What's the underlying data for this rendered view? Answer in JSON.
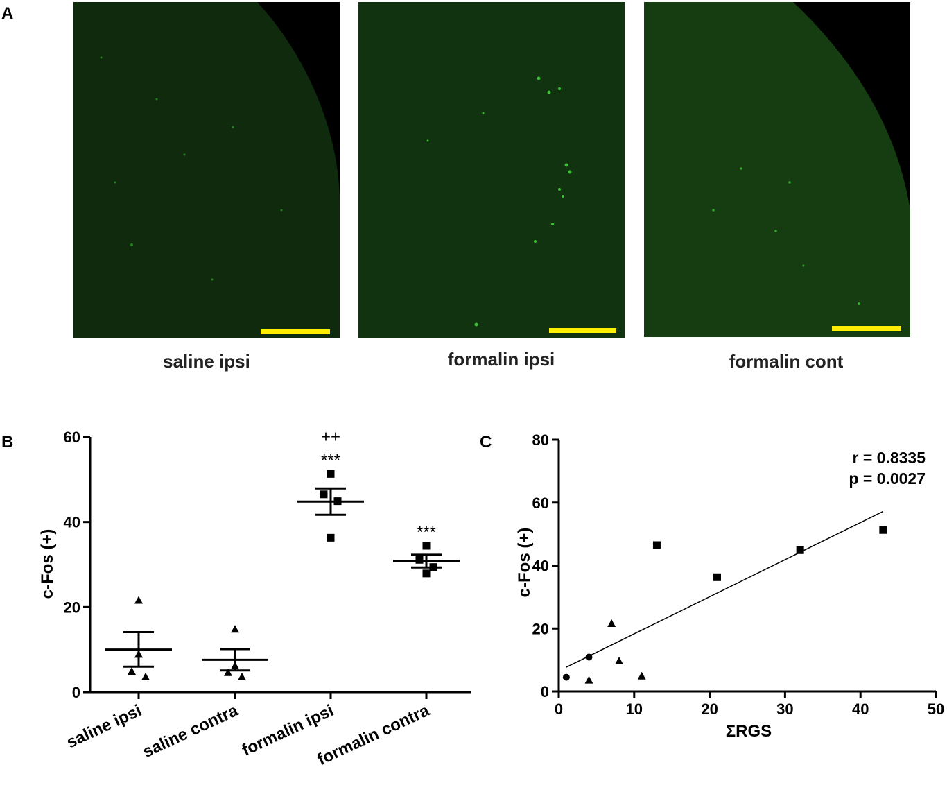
{
  "panels": {
    "a": "A",
    "b": "B",
    "c": "C"
  },
  "micrographs": [
    {
      "label": "saline ipsi",
      "tissue_color": "#0f2a0c",
      "background_color": "#000000",
      "scale_bar_color": "#ffee00"
    },
    {
      "label": "formalin ipsi",
      "tissue_color": "#113310",
      "background_color": "#000000",
      "scale_bar_color": "#ffee00"
    },
    {
      "label": "formalin cont",
      "tissue_color": "#163d12",
      "background_color": "#000000",
      "scale_bar_color": "#ffee00"
    }
  ],
  "chart_data": [
    {
      "type": "scatter",
      "panel": "B",
      "ylabel": "c-Fos (+)",
      "ylim": [
        0,
        60
      ],
      "yticks": [
        0,
        20,
        40,
        60
      ],
      "categories": [
        "saline ipsi",
        "saline contra",
        "formalin ipsi",
        "formalin contra"
      ],
      "groups": [
        {
          "category": "saline ipsi",
          "marker": "triangle",
          "points": [
            21.6,
            8.9,
            4.9,
            3.6
          ],
          "mean": 10.0,
          "sem_upper": 14.1,
          "sem_lower": 6.0
        },
        {
          "category": "saline contra",
          "marker": "triangle",
          "points": [
            14.8,
            6.2,
            4.6,
            3.6
          ],
          "mean": 7.6,
          "sem_upper": 10.1,
          "sem_lower": 5.1
        },
        {
          "category": "formalin ipsi",
          "marker": "square",
          "points": [
            51.3,
            46.5,
            44.9,
            36.3
          ],
          "mean": 44.8,
          "sem_upper": 47.9,
          "sem_lower": 41.7
        },
        {
          "category": "formalin contra",
          "marker": "square",
          "points": [
            34.4,
            31.1,
            29.4,
            27.9
          ],
          "mean": 30.8,
          "sem_upper": 32.3,
          "sem_lower": 29.3
        }
      ],
      "annotations": [
        {
          "category": "formalin ipsi",
          "lines": [
            "++",
            "***"
          ]
        },
        {
          "category": "formalin contra",
          "lines": [
            "***"
          ]
        }
      ]
    },
    {
      "type": "scatter",
      "panel": "C",
      "xlabel": "ΣRGS",
      "ylabel": "c-Fos (+)",
      "xlim": [
        0,
        50
      ],
      "ylim": [
        0,
        80
      ],
      "xticks": [
        0,
        10,
        20,
        30,
        40,
        50
      ],
      "yticks": [
        0,
        20,
        40,
        60,
        80
      ],
      "series": [
        {
          "marker": "circle",
          "points": [
            [
              1,
              4.5
            ],
            [
              4,
              10.9
            ]
          ]
        },
        {
          "marker": "triangle",
          "points": [
            [
              4,
              3.6
            ],
            [
              7,
              21.6
            ],
            [
              8,
              9.7
            ],
            [
              11,
              4.9
            ]
          ]
        },
        {
          "marker": "square",
          "points": [
            [
              13,
              46.5
            ],
            [
              21,
              36.3
            ],
            [
              32,
              44.9
            ],
            [
              43,
              51.3
            ]
          ]
        }
      ],
      "fit_line": [
        [
          1,
          7.7
        ],
        [
          43,
          57.2
        ]
      ],
      "stats": [
        "r = 0.8335",
        "p = 0.0027"
      ]
    }
  ]
}
